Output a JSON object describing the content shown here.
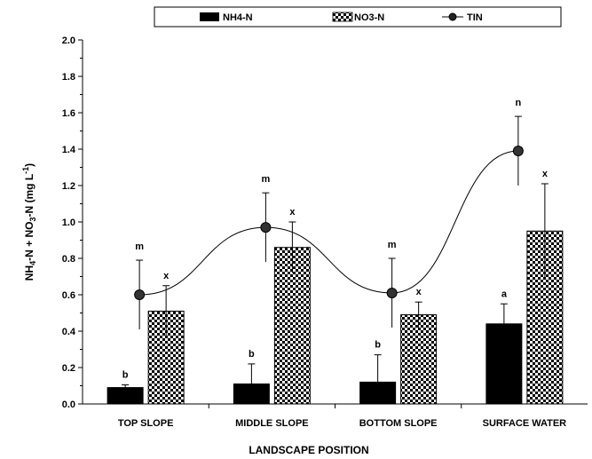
{
  "chart_data": {
    "type": "bar",
    "categories": [
      "TOP SLOPE",
      "MIDDLE SLOPE",
      "BOTTOM SLOPE",
      "SURFACE WATER"
    ],
    "series": [
      {
        "name": "NH4-N",
        "kind": "bar",
        "color": "#000000",
        "pattern": "solid",
        "values": [
          0.09,
          0.11,
          0.12,
          0.44
        ],
        "errors": [
          0.015,
          0.11,
          0.15,
          0.11
        ],
        "letters": [
          "b",
          "b",
          "b",
          "a"
        ]
      },
      {
        "name": "NO3-N",
        "kind": "bar",
        "color": "#000000",
        "pattern": "checker",
        "values": [
          0.51,
          0.86,
          0.49,
          0.95
        ],
        "errors": [
          0.14,
          0.14,
          0.07,
          0.26
        ],
        "letters": [
          "x",
          "x",
          "x",
          "x"
        ]
      },
      {
        "name": "TIN",
        "kind": "line",
        "color": "#000000",
        "marker": "circle",
        "values": [
          0.6,
          0.97,
          0.61,
          1.39
        ],
        "errors": [
          0.19,
          0.19,
          0.19,
          0.19
        ],
        "letters": [
          "m",
          "m",
          "m",
          "n"
        ]
      }
    ],
    "xlabel": "LANDSCAPE POSITION",
    "ylabel_parts": {
      "a": "NH",
      "a_sub": "4",
      "b": "-N + NO",
      "b_sub": "3",
      "c": "-N (mg L",
      "c_sup": "-1",
      "d": ")"
    },
    "ylim": [
      0,
      2.0
    ],
    "yticks": [
      "0.0",
      "0.2",
      "0.4",
      "0.6",
      "0.8",
      "1.0",
      "1.2",
      "1.4",
      "1.6",
      "1.8",
      "2.0"
    ],
    "legend_placement": "top-center",
    "grid": false
  }
}
